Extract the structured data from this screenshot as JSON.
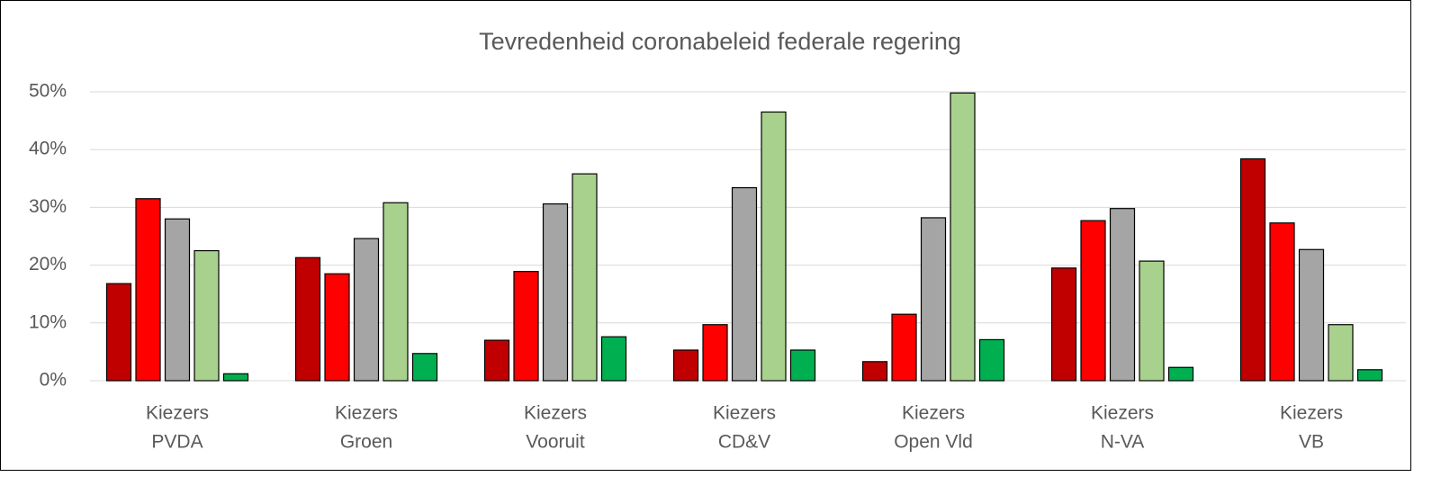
{
  "chart_data": {
    "type": "bar",
    "title": "Tevredenheid coronabeleid federale regering",
    "categories": [
      [
        "Kiezers",
        "PVDA"
      ],
      [
        "Kiezers",
        "Groen"
      ],
      [
        "Kiezers",
        "Vooruit"
      ],
      [
        "Kiezers",
        "CD&V"
      ],
      [
        "Kiezers",
        "Open Vld"
      ],
      [
        "Kiezers",
        "N-VA"
      ],
      [
        "Kiezers",
        "VB"
      ]
    ],
    "series": [
      {
        "color": "#c00000",
        "values": [
          16.8,
          21.3,
          7.0,
          5.3,
          3.3,
          19.5,
          38.4
        ]
      },
      {
        "color": "#ff0000",
        "values": [
          31.5,
          18.5,
          18.9,
          9.7,
          11.5,
          27.7,
          27.3
        ]
      },
      {
        "color": "#a5a5a5",
        "values": [
          28.0,
          24.6,
          30.6,
          33.4,
          28.2,
          29.8,
          22.7
        ]
      },
      {
        "color": "#a9d18e",
        "values": [
          22.5,
          30.8,
          35.8,
          46.5,
          49.8,
          20.7,
          9.7
        ]
      },
      {
        "color": "#00b050",
        "values": [
          1.2,
          4.7,
          7.6,
          5.3,
          7.1,
          2.3,
          1.9
        ]
      }
    ],
    "ylim": [
      0,
      50
    ],
    "yticks": [
      {
        "value": 0,
        "label": "0%"
      },
      {
        "value": 10,
        "label": "10%"
      },
      {
        "value": 20,
        "label": "20%"
      },
      {
        "value": 30,
        "label": "30%"
      },
      {
        "value": 40,
        "label": "40%"
      },
      {
        "value": 50,
        "label": "50%"
      }
    ],
    "grid": true
  }
}
